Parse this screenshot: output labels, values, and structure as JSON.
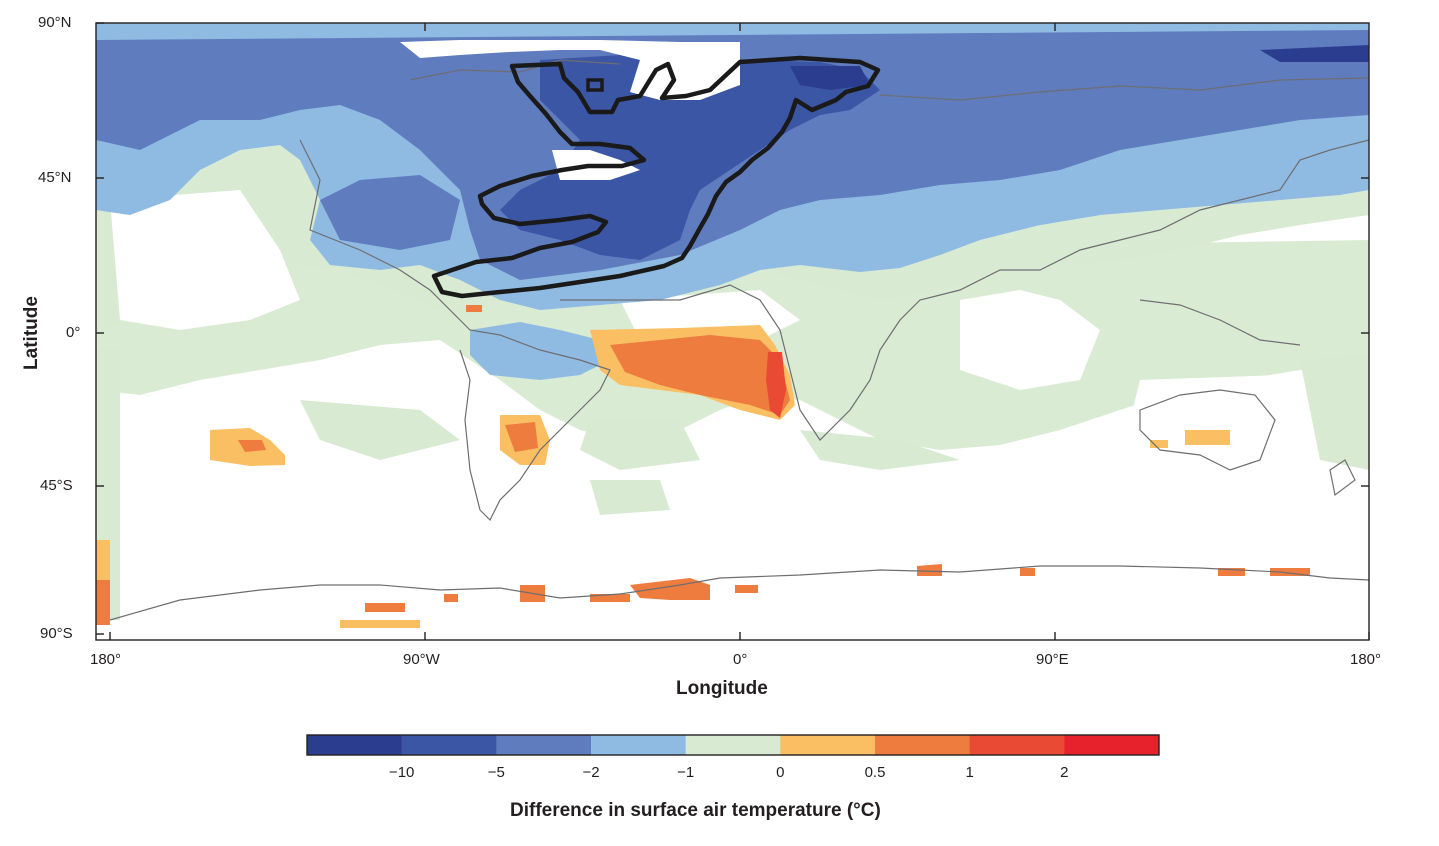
{
  "axes": {
    "ylabel": "Latitude",
    "xlabel": "Longitude",
    "lat_ticks": [
      "90°N",
      "45°N",
      "0°",
      "45°S",
      "90°S"
    ],
    "lon_ticks": [
      "180°",
      "90°W",
      "0°",
      "90°E",
      "180°"
    ]
  },
  "colorbar": {
    "title": "Difference in surface air temperature (°C)",
    "tick_labels": [
      "−10",
      "−5",
      "−2",
      "−1",
      "0",
      "0.5",
      "1",
      "2"
    ],
    "colors": [
      "#2b3d8f",
      "#3c56a6",
      "#5f7cbf",
      "#8fbbe3",
      "#d8ead2",
      "#f9bf62",
      "#ee7c3e",
      "#e84a33",
      "#e8222d"
    ]
  },
  "colors": {
    "land_outline": "#6d6e71",
    "contour_black": "#1a1a1a",
    "ocean_white": "#ffffff"
  }
}
